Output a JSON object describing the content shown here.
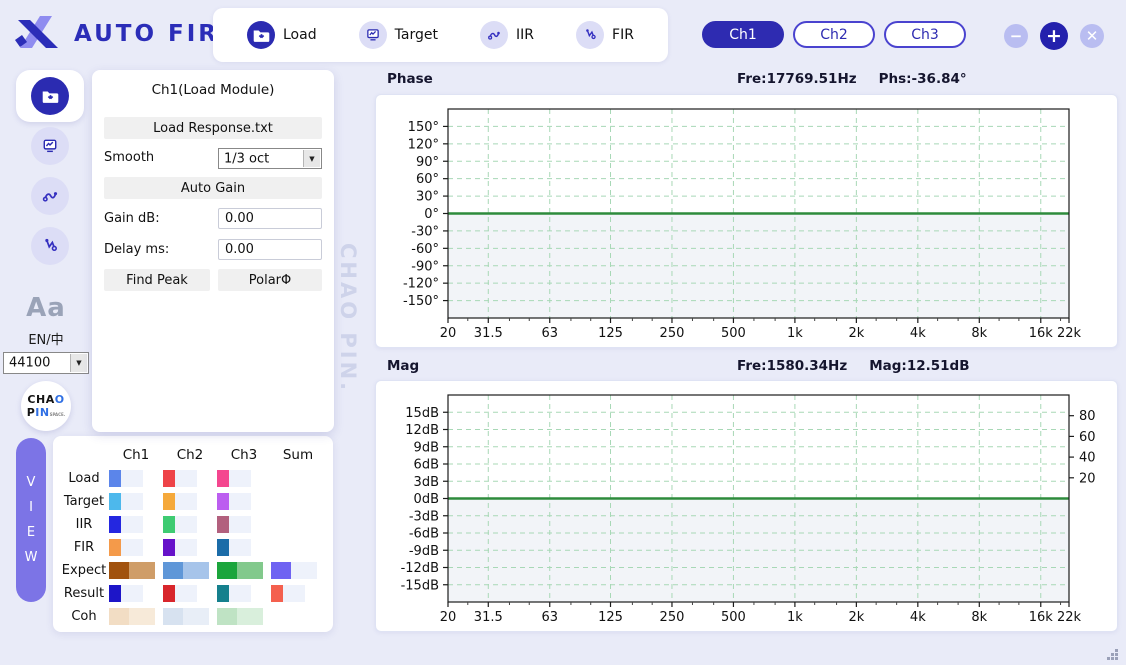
{
  "brand": {
    "logo_text": "AUTO FIR",
    "logo_plus": "+"
  },
  "topbar": {
    "tabs": [
      {
        "label": "Load",
        "active": true
      },
      {
        "label": "Target",
        "active": false
      },
      {
        "label": "IIR",
        "active": false
      },
      {
        "label": "FIR",
        "active": false
      }
    ],
    "channels": [
      {
        "label": "Ch1",
        "active": true
      },
      {
        "label": "Ch2",
        "active": false
      },
      {
        "label": "Ch3",
        "active": false
      }
    ],
    "window_buttons": {
      "minimize": "−",
      "add": "+",
      "close": "✕"
    }
  },
  "sidebar": {
    "font_toggle": "Aa",
    "language_toggle": "EN/中",
    "sample_rate": "44100",
    "brand_circle": {
      "top_black": "CHA",
      "top_blue": "O",
      "bottom_black": "P",
      "bottom_blue": "IN",
      "bottom_small": "SPACE."
    }
  },
  "view_button": {
    "letters": [
      "V",
      "I",
      "E",
      "W"
    ]
  },
  "load_module": {
    "title": "Ch1(Load Module)",
    "load_button": "Load Response.txt",
    "smooth_label": "Smooth",
    "smooth_value": "1/3 oct",
    "auto_gain_button": "Auto Gain",
    "gain_label": "Gain dB:",
    "gain_value": "0.00",
    "delay_label": "Delay ms:",
    "delay_value": "0.00",
    "find_peak_button": "Find Peak",
    "polar_button": "PolarΦ"
  },
  "legend": {
    "columns": [
      "Ch1",
      "Ch2",
      "Ch3",
      "Sum"
    ],
    "rows": [
      {
        "label": "Load",
        "wide": false,
        "cells": [
          {
            "a": "#5b85ea",
            "b": "#eef2fb"
          },
          {
            "a": "#ee4348",
            "b": "#eef2fb"
          },
          {
            "a": "#f4468f",
            "b": "#eef2fb"
          },
          null
        ]
      },
      {
        "label": "Target",
        "wide": false,
        "cells": [
          {
            "a": "#4db8ec",
            "b": "#eef2fb"
          },
          {
            "a": "#f5a93b",
            "b": "#eef2fb"
          },
          {
            "a": "#bc5ef0",
            "b": "#eef2fb"
          },
          null
        ]
      },
      {
        "label": "IIR",
        "wide": false,
        "cells": [
          {
            "a": "#2427e0",
            "b": "#eef2fb"
          },
          {
            "a": "#3ecb72",
            "b": "#eef2fb"
          },
          {
            "a": "#b2607e",
            "b": "#eef2fb"
          },
          null
        ]
      },
      {
        "label": "FIR",
        "wide": false,
        "cells": [
          {
            "a": "#f49a4a",
            "b": "#eef2fb"
          },
          {
            "a": "#6612c9",
            "b": "#eef2fb"
          },
          {
            "a": "#1b6ca8",
            "b": "#eef2fb"
          },
          null
        ]
      },
      {
        "label": "Expect",
        "wide": true,
        "cells": [
          {
            "a": "#a1520e",
            "b": "#cf9d68"
          },
          {
            "a": "#5f97d8",
            "b": "#a6c4ea"
          },
          {
            "a": "#1ba53c",
            "b": "#82c98c"
          },
          {
            "a": "#6f63f2",
            "b": "#eef2fb"
          }
        ]
      },
      {
        "label": "Result",
        "wide": false,
        "cells": [
          {
            "a": "#1d15c8",
            "b": "#eef2fb"
          },
          {
            "a": "#d8262c",
            "b": "#eef2fb"
          },
          {
            "a": "#15808d",
            "b": "#eef2fb"
          },
          {
            "a": "#f4604e",
            "b": "#eef2fb"
          }
        ]
      },
      {
        "label": "Coh",
        "wide": true,
        "cells": [
          {
            "a": "#f2ddc4",
            "b": "#f7ead9"
          },
          {
            "a": "#d7e2f0",
            "b": "#e8eef7"
          },
          {
            "a": "#bfe3c4",
            "b": "#d9efdc"
          },
          null
        ]
      }
    ]
  },
  "watermark": "CHAO PIN.",
  "chart_data": [
    {
      "type": "line",
      "title": "Phase",
      "readout_left": "Fre:17769.51Hz",
      "readout_right": "Phs:-36.84°",
      "x": {
        "scale": "log",
        "min": 20,
        "max": 22000,
        "ticks": [
          [
            20,
            "20"
          ],
          [
            31.5,
            "31.5"
          ],
          [
            63,
            "63"
          ],
          [
            125,
            "125"
          ],
          [
            250,
            "250"
          ],
          [
            500,
            "500"
          ],
          [
            1000,
            "1k"
          ],
          [
            2000,
            "2k"
          ],
          [
            4000,
            "4k"
          ],
          [
            8000,
            "8k"
          ],
          [
            16000,
            "16k"
          ],
          [
            22000,
            "22k"
          ]
        ],
        "minor": [
          25,
          40,
          50,
          80,
          100,
          160,
          200,
          315,
          400,
          630,
          800,
          1250,
          1600,
          2500,
          3150,
          5000,
          6300,
          10000,
          12500,
          20000
        ]
      },
      "y": {
        "min": -180,
        "max": 180,
        "unit": "deg",
        "ticks": [
          [
            150,
            "150°"
          ],
          [
            120,
            "120°"
          ],
          [
            90,
            "90°"
          ],
          [
            60,
            "60°"
          ],
          [
            30,
            "30°"
          ],
          [
            0,
            "0°"
          ],
          [
            -30,
            "-30°"
          ],
          [
            -60,
            "-60°"
          ],
          [
            -90,
            "-90°"
          ],
          [
            -120,
            "-120°"
          ],
          [
            -150,
            "-150°"
          ]
        ]
      },
      "grid": true,
      "series": [
        {
          "name": "phase-response",
          "color": "#2e8b3c",
          "points": [
            [
              20,
              0
            ],
            [
              22000,
              0
            ]
          ]
        }
      ]
    },
    {
      "type": "line",
      "title": "Mag",
      "readout_left": "Fre:1580.34Hz",
      "readout_right": "Mag:12.51dB",
      "x": {
        "scale": "log",
        "min": 20,
        "max": 22000,
        "ticks": [
          [
            20,
            "20"
          ],
          [
            31.5,
            "31.5"
          ],
          [
            63,
            "63"
          ],
          [
            125,
            "125"
          ],
          [
            250,
            "250"
          ],
          [
            500,
            "500"
          ],
          [
            1000,
            "1k"
          ],
          [
            2000,
            "2k"
          ],
          [
            4000,
            "4k"
          ],
          [
            8000,
            "8k"
          ],
          [
            16000,
            "16k"
          ],
          [
            22000,
            "22k"
          ]
        ],
        "minor": [
          25,
          40,
          50,
          80,
          100,
          160,
          200,
          315,
          400,
          630,
          800,
          1250,
          1600,
          2500,
          3150,
          5000,
          6300,
          10000,
          12500,
          20000
        ]
      },
      "y": {
        "min": -18,
        "max": 18,
        "unit": "dB",
        "ticks": [
          [
            15,
            "15dB"
          ],
          [
            12,
            "12dB"
          ],
          [
            9,
            "9dB"
          ],
          [
            6,
            "6dB"
          ],
          [
            3,
            "3dB"
          ],
          [
            0,
            "0dB"
          ],
          [
            -3,
            "-3dB"
          ],
          [
            -6,
            "-6dB"
          ],
          [
            -9,
            "-9dB"
          ],
          [
            -12,
            "-12dB"
          ],
          [
            -15,
            "-15dB"
          ]
        ]
      },
      "y2": {
        "min": 0,
        "max": 100,
        "zero_ref": 0,
        "ticks": [
          80,
          60,
          40,
          20
        ]
      },
      "grid": true,
      "series": [
        {
          "name": "mag-response",
          "color": "#2e8b3c",
          "points": [
            [
              20,
              0
            ],
            [
              22000,
              0
            ]
          ]
        }
      ]
    }
  ]
}
